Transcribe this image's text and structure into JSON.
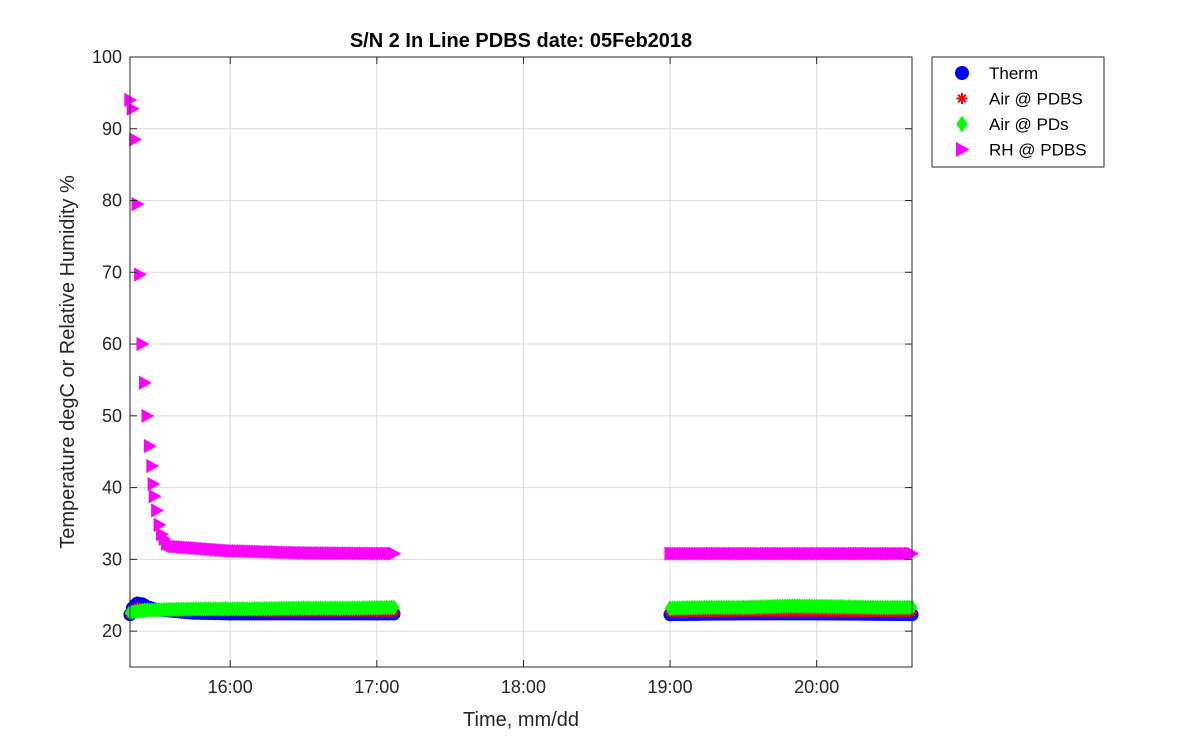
{
  "chart_data": {
    "type": "scatter",
    "title": "S/N 2 In Line PDBS date: 05Feb2018",
    "xlabel": "Time, mm/dd",
    "ylabel": "Temperature degC or Relative Humidity %",
    "xlim": [
      "15:19",
      "20:39"
    ],
    "ylim": [
      15,
      100
    ],
    "xticks": [
      "16:00",
      "17:00",
      "18:00",
      "19:00",
      "20:00"
    ],
    "yticks": [
      20,
      30,
      40,
      50,
      60,
      70,
      80,
      90,
      100
    ],
    "grid": true,
    "legend_position": "outside-top-right",
    "segments": [
      {
        "start": "15:19",
        "end": "17:07"
      },
      {
        "start": "19:00",
        "end": "20:39"
      }
    ],
    "series": [
      {
        "name": "Therm",
        "marker": "circle",
        "color": "#0000ff",
        "points": [
          [
            "15:19",
            22.3
          ],
          [
            "15:20",
            23.2
          ],
          [
            "15:21",
            23.6
          ],
          [
            "15:22",
            23.9
          ],
          [
            "15:24",
            23.8
          ],
          [
            "15:26",
            23.4
          ],
          [
            "15:30",
            23.0
          ],
          [
            "15:35",
            22.8
          ],
          [
            "15:45",
            22.5
          ],
          [
            "16:00",
            22.4
          ],
          [
            "16:30",
            22.4
          ],
          [
            "17:00",
            22.4
          ],
          [
            "17:07",
            22.4
          ],
          [
            "19:00",
            22.3
          ],
          [
            "19:30",
            22.4
          ],
          [
            "20:00",
            22.4
          ],
          [
            "20:39",
            22.3
          ]
        ]
      },
      {
        "name": "Air @ PDBS",
        "marker": "asterisk",
        "color": "#ff0000",
        "points": [
          [
            "15:19",
            22.4
          ],
          [
            "15:22",
            23.3
          ],
          [
            "15:26",
            23.2
          ],
          [
            "15:35",
            23.0
          ],
          [
            "15:50",
            22.8
          ],
          [
            "16:15",
            22.7
          ],
          [
            "16:45",
            22.7
          ],
          [
            "17:07",
            22.7
          ],
          [
            "19:00",
            22.6
          ],
          [
            "19:30",
            22.7
          ],
          [
            "20:00",
            22.7
          ],
          [
            "20:39",
            22.6
          ]
        ]
      },
      {
        "name": "Air @ PDs",
        "marker": "diamond",
        "color": "#00ff00",
        "points": [
          [
            "15:19",
            22.6
          ],
          [
            "15:25",
            22.9
          ],
          [
            "15:35",
            23.0
          ],
          [
            "15:50",
            23.1
          ],
          [
            "16:10",
            23.1
          ],
          [
            "16:30",
            23.2
          ],
          [
            "16:50",
            23.2
          ],
          [
            "17:07",
            23.3
          ],
          [
            "19:00",
            23.2
          ],
          [
            "19:15",
            23.3
          ],
          [
            "19:30",
            23.3
          ],
          [
            "19:50",
            23.5
          ],
          [
            "20:10",
            23.4
          ],
          [
            "20:25",
            23.3
          ],
          [
            "20:39",
            23.3
          ]
        ]
      },
      {
        "name": "RH @ PDBS",
        "marker": "triangle-right",
        "color": "#ff00ff",
        "points": [
          [
            "15:19",
            94.0
          ],
          [
            "15:20",
            92.8
          ],
          [
            "15:21",
            88.5
          ],
          [
            "15:22",
            79.5
          ],
          [
            "15:23",
            69.7
          ],
          [
            "15:24",
            60.0
          ],
          [
            "15:25",
            54.6
          ],
          [
            "15:26",
            50.0
          ],
          [
            "15:27",
            45.8
          ],
          [
            "15:28",
            43.0
          ],
          [
            "15:28.5",
            40.5
          ],
          [
            "15:29",
            38.8
          ],
          [
            "15:30",
            36.8
          ],
          [
            "15:31",
            34.8
          ],
          [
            "15:32",
            33.5
          ],
          [
            "15:34",
            32.2
          ],
          [
            "15:37",
            31.8
          ],
          [
            "15:45",
            31.6
          ],
          [
            "16:00",
            31.2
          ],
          [
            "16:30",
            30.9
          ],
          [
            "17:07",
            30.8
          ],
          [
            "19:00",
            30.8
          ],
          [
            "19:30",
            30.8
          ],
          [
            "20:00",
            30.8
          ],
          [
            "20:39",
            30.8
          ]
        ]
      }
    ]
  }
}
